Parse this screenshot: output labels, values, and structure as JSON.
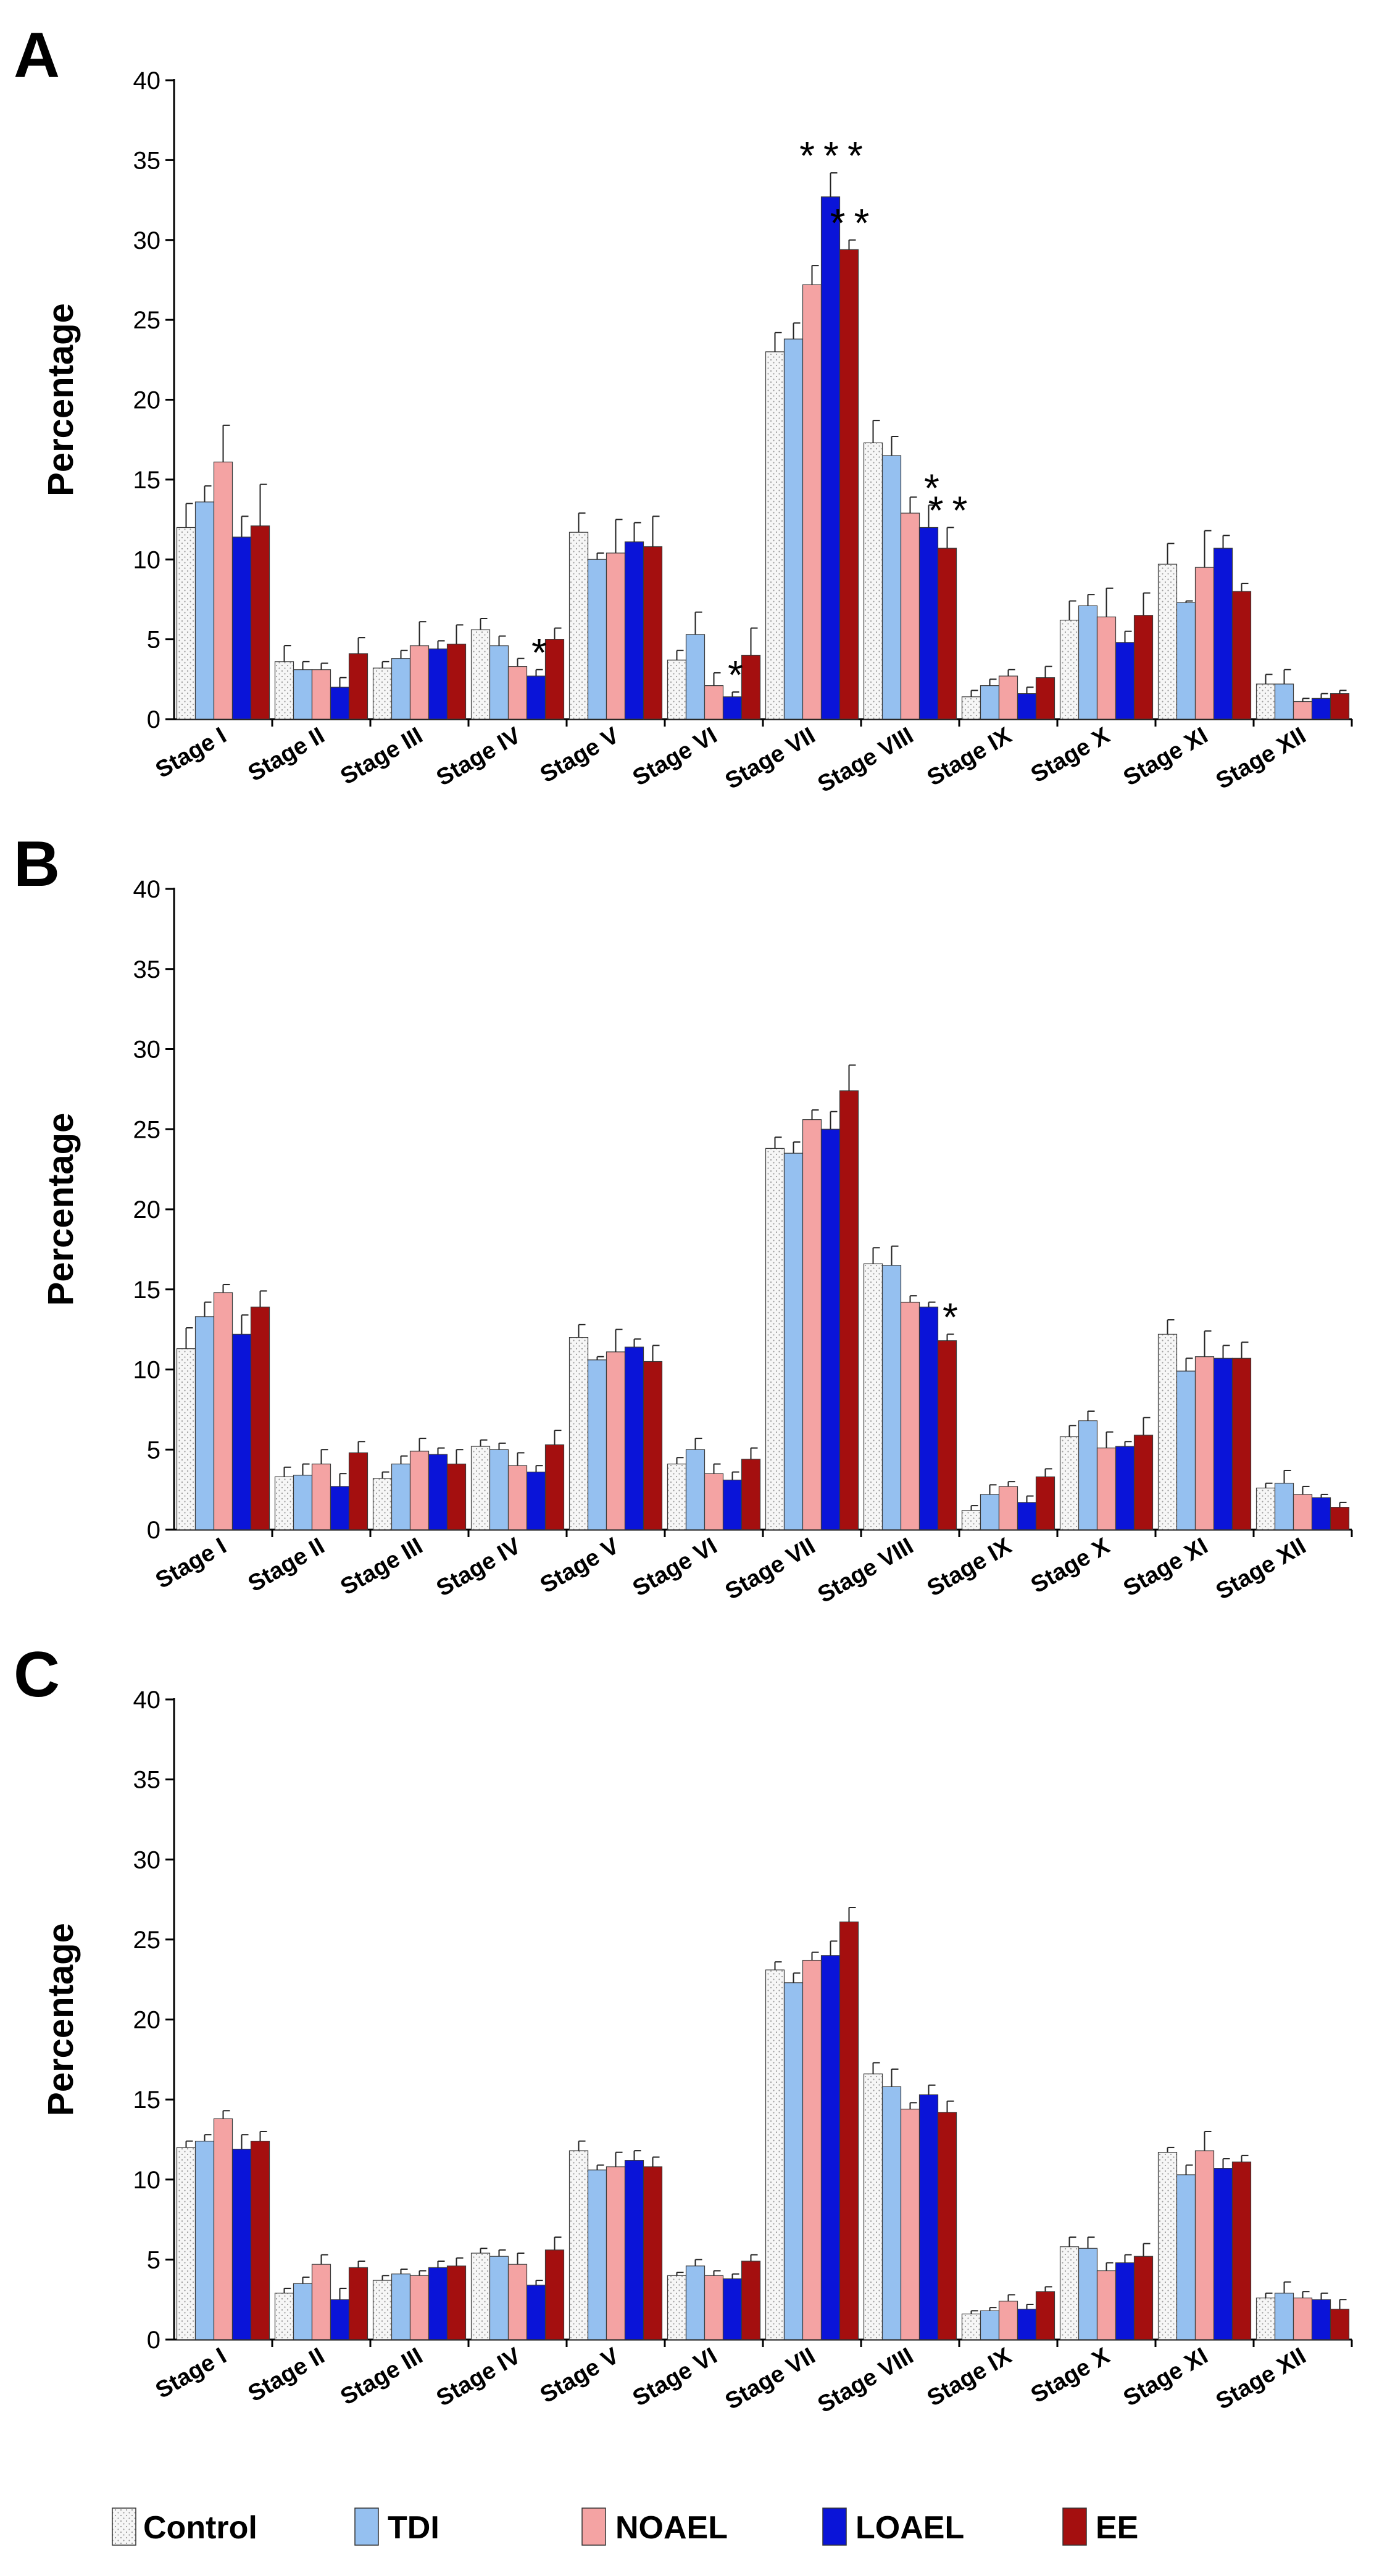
{
  "chart_data": [
    {
      "type": "bar",
      "panel_label": "A",
      "ylabel": "Percentage",
      "ylim": [
        0,
        40
      ],
      "yticks": [
        0,
        5,
        10,
        15,
        20,
        25,
        30,
        35,
        40
      ],
      "grid": false,
      "categories": [
        "Stage I",
        "Stage II",
        "Stage III",
        "Stage IV",
        "Stage V",
        "Stage VI",
        "Stage VII",
        "Stage VIII",
        "Stage IX",
        "Stage X",
        "Stage XI",
        "Stage XII"
      ],
      "series": [
        {
          "name": "Control",
          "values": [
            12.0,
            3.6,
            3.2,
            5.6,
            11.7,
            3.7,
            23.0,
            17.3,
            1.4,
            6.2,
            9.7,
            2.2
          ],
          "errors": [
            1.5,
            1.0,
            0.4,
            0.7,
            1.2,
            0.6,
            1.2,
            1.4,
            0.4,
            1.2,
            1.3,
            0.6
          ]
        },
        {
          "name": "TDI",
          "values": [
            13.6,
            3.1,
            3.8,
            4.6,
            10.0,
            5.3,
            23.8,
            16.5,
            2.1,
            7.1,
            7.3,
            2.2
          ],
          "errors": [
            1.0,
            0.5,
            0.5,
            0.6,
            0.4,
            1.4,
            1.0,
            1.2,
            0.4,
            0.7,
            0.1,
            0.9
          ]
        },
        {
          "name": "NOAEL",
          "values": [
            16.1,
            3.1,
            4.6,
            3.3,
            10.4,
            2.1,
            27.2,
            12.9,
            2.7,
            6.4,
            9.5,
            1.1
          ],
          "errors": [
            2.3,
            0.4,
            1.5,
            0.5,
            2.1,
            0.8,
            1.2,
            1.0,
            0.4,
            1.8,
            2.3,
            0.2
          ]
        },
        {
          "name": "LOAEL",
          "values": [
            11.4,
            2.0,
            4.4,
            2.7,
            11.1,
            1.4,
            32.7,
            12.0,
            1.6,
            4.8,
            10.7,
            1.3
          ],
          "errors": [
            1.3,
            0.6,
            0.5,
            0.4,
            1.2,
            0.3,
            1.5,
            1.4,
            0.4,
            0.7,
            0.8,
            0.3
          ]
        },
        {
          "name": "EE",
          "values": [
            12.1,
            4.1,
            4.7,
            5.0,
            10.8,
            4.0,
            29.4,
            10.7,
            2.6,
            6.5,
            8.0,
            1.6
          ],
          "errors": [
            2.6,
            1.0,
            1.2,
            0.7,
            1.9,
            1.7,
            0.6,
            1.3,
            0.7,
            1.4,
            0.5,
            0.2
          ]
        }
      ],
      "annotations": [
        {
          "text": "*",
          "category": "Stage IV",
          "series": "LOAEL"
        },
        {
          "text": "*",
          "category": "Stage VI",
          "series": "LOAEL"
        },
        {
          "text": "***",
          "category": "Stage VII",
          "series": "LOAEL"
        },
        {
          "text": "**",
          "category": "Stage VII",
          "series": "EE"
        },
        {
          "text": "*",
          "category": "Stage VIII",
          "series": "LOAEL"
        },
        {
          "text": "**",
          "category": "Stage VIII",
          "series": "EE"
        }
      ]
    },
    {
      "type": "bar",
      "panel_label": "B",
      "ylabel": "Percentage",
      "ylim": [
        0,
        40
      ],
      "yticks": [
        0,
        5,
        10,
        15,
        20,
        25,
        30,
        35,
        40
      ],
      "grid": false,
      "categories": [
        "Stage I",
        "Stage II",
        "Stage III",
        "Stage IV",
        "Stage V",
        "Stage VI",
        "Stage VII",
        "Stage VIII",
        "Stage IX",
        "Stage X",
        "Stage XI",
        "Stage XII"
      ],
      "series": [
        {
          "name": "Control",
          "values": [
            11.3,
            3.3,
            3.2,
            5.2,
            12.0,
            4.1,
            23.8,
            16.6,
            1.2,
            5.8,
            12.2,
            2.6
          ],
          "errors": [
            1.3,
            0.6,
            0.4,
            0.4,
            0.8,
            0.4,
            0.7,
            1.0,
            0.3,
            0.7,
            0.9,
            0.3
          ]
        },
        {
          "name": "TDI",
          "values": [
            13.3,
            3.4,
            4.1,
            5.0,
            10.6,
            5.0,
            23.5,
            16.5,
            2.2,
            6.8,
            9.9,
            2.9
          ],
          "errors": [
            0.9,
            0.7,
            0.5,
            0.4,
            0.2,
            0.7,
            0.7,
            1.2,
            0.6,
            0.6,
            0.8,
            0.8
          ]
        },
        {
          "name": "NOAEL",
          "values": [
            14.8,
            4.1,
            4.9,
            4.0,
            11.1,
            3.5,
            25.6,
            14.2,
            2.7,
            5.1,
            10.8,
            2.2
          ],
          "errors": [
            0.5,
            0.9,
            0.8,
            0.8,
            1.4,
            0.6,
            0.6,
            0.4,
            0.3,
            1.0,
            1.6,
            0.5
          ]
        },
        {
          "name": "LOAEL",
          "values": [
            12.2,
            2.7,
            4.7,
            3.6,
            11.4,
            3.1,
            25.0,
            13.9,
            1.7,
            5.2,
            10.7,
            2.0
          ],
          "errors": [
            1.2,
            0.8,
            0.4,
            0.4,
            0.5,
            0.5,
            1.1,
            0.3,
            0.4,
            0.3,
            0.8,
            0.2
          ]
        },
        {
          "name": "EE",
          "values": [
            13.9,
            4.8,
            4.1,
            5.3,
            10.5,
            4.4,
            27.4,
            11.8,
            3.3,
            5.9,
            10.7,
            1.4
          ],
          "errors": [
            1.0,
            0.7,
            0.9,
            0.9,
            1.0,
            0.7,
            1.6,
            0.4,
            0.5,
            1.1,
            1.0,
            0.3
          ]
        }
      ],
      "annotations": [
        {
          "text": "*",
          "category": "Stage VIII",
          "series": "EE"
        }
      ]
    },
    {
      "type": "bar",
      "panel_label": "C",
      "ylabel": "Percentage",
      "ylim": [
        0,
        40
      ],
      "yticks": [
        0,
        5,
        10,
        15,
        20,
        25,
        30,
        35,
        40
      ],
      "grid": false,
      "categories": [
        "Stage I",
        "Stage II",
        "Stage III",
        "Stage IV",
        "Stage V",
        "Stage VI",
        "Stage VII",
        "Stage VIII",
        "Stage IX",
        "Stage X",
        "Stage XI",
        "Stage XII"
      ],
      "series": [
        {
          "name": "Control",
          "values": [
            12.0,
            2.9,
            3.7,
            5.4,
            11.8,
            4.0,
            23.1,
            16.6,
            1.6,
            5.8,
            11.7,
            2.6
          ],
          "errors": [
            0.4,
            0.3,
            0.3,
            0.3,
            0.6,
            0.2,
            0.5,
            0.7,
            0.2,
            0.6,
            0.3,
            0.3
          ]
        },
        {
          "name": "TDI",
          "values": [
            12.4,
            3.5,
            4.1,
            5.2,
            10.6,
            4.6,
            22.3,
            15.8,
            1.8,
            5.7,
            10.3,
            2.9
          ],
          "errors": [
            0.4,
            0.4,
            0.3,
            0.4,
            0.3,
            0.4,
            0.6,
            1.1,
            0.2,
            0.7,
            0.6,
            0.7
          ]
        },
        {
          "name": "NOAEL",
          "values": [
            13.8,
            4.7,
            4.0,
            4.7,
            10.8,
            4.0,
            23.7,
            14.4,
            2.4,
            4.3,
            11.8,
            2.6
          ],
          "errors": [
            0.5,
            0.6,
            0.3,
            0.7,
            0.9,
            0.3,
            0.5,
            0.4,
            0.4,
            0.5,
            1.2,
            0.4
          ]
        },
        {
          "name": "LOAEL",
          "values": [
            11.9,
            2.5,
            4.5,
            3.4,
            11.2,
            3.8,
            24.0,
            15.3,
            1.9,
            4.8,
            10.7,
            2.5
          ],
          "errors": [
            0.9,
            0.7,
            0.4,
            0.3,
            0.6,
            0.3,
            0.9,
            0.6,
            0.3,
            0.5,
            0.6,
            0.4
          ]
        },
        {
          "name": "EE",
          "values": [
            12.4,
            4.5,
            4.6,
            5.6,
            10.8,
            4.9,
            26.1,
            14.2,
            3.0,
            5.2,
            11.1,
            1.9
          ],
          "errors": [
            0.6,
            0.4,
            0.5,
            0.8,
            0.6,
            0.4,
            0.9,
            0.7,
            0.3,
            0.8,
            0.4,
            0.6
          ]
        }
      ],
      "annotations": []
    }
  ],
  "legend": [
    {
      "name": "Control",
      "color": "#f6f6f6"
    },
    {
      "name": "TDI",
      "color": "#95c0f0"
    },
    {
      "name": "NOAEL",
      "color": "#f4a3a3"
    },
    {
      "name": "LOAEL",
      "color": "#0a14d8"
    },
    {
      "name": "EE",
      "color": "#a40f0f"
    }
  ],
  "series_colors": {
    "Control": "#f6f6f6",
    "TDI": "#95c0f0",
    "NOAEL": "#f4a3a3",
    "LOAEL": "#0a14d8",
    "EE": "#a40f0f"
  }
}
